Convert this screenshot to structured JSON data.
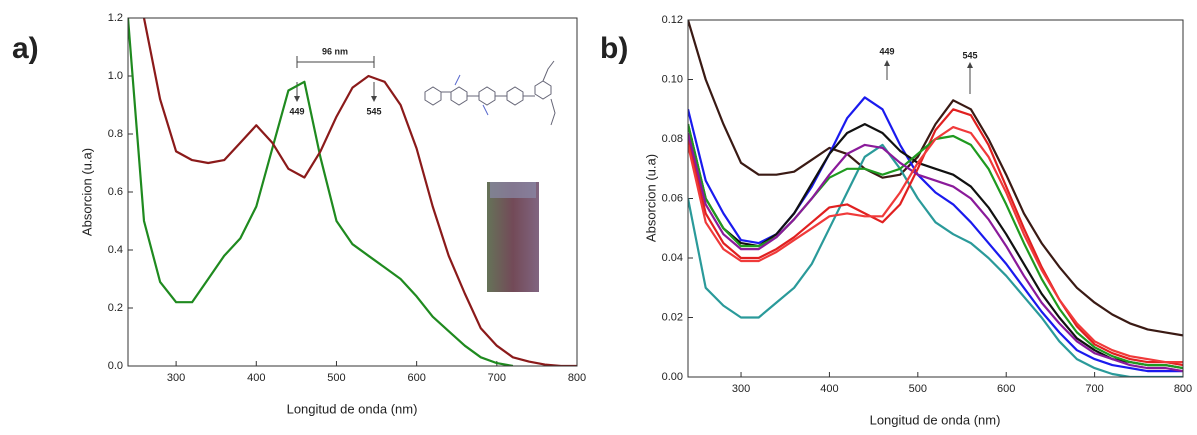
{
  "chart_data": [
    {
      "type": "line",
      "label": "a)",
      "xlabel": "Longitud de onda (nm)",
      "ylabel": "Absorcion (u.a)",
      "annotations": [
        "96 nm",
        "449",
        "545"
      ],
      "x": [
        240,
        260,
        280,
        300,
        320,
        340,
        360,
        380,
        400,
        420,
        440,
        460,
        480,
        500,
        520,
        540,
        560,
        580,
        600,
        620,
        640,
        660,
        680,
        700,
        720,
        740,
        760,
        780,
        800
      ],
      "xlim": [
        240,
        800
      ],
      "xticks": [
        300,
        400,
        500,
        600,
        700,
        800
      ],
      "ylim": [
        0,
        1.2
      ],
      "yticks": [
        {
          "value": 0,
          "label": "0.0"
        },
        0.2,
        0.4,
        0.6,
        0.8,
        {
          "value": 1,
          "label": "1.0"
        },
        1.2
      ],
      "series": [
        {
          "color": "#1f8a1f",
          "values": [
            1.2,
            0.5,
            0.29,
            0.22,
            0.22,
            0.3,
            0.38,
            0.44,
            0.55,
            0.75,
            0.95,
            0.98,
            0.72,
            0.5,
            0.42,
            0.38,
            0.34,
            0.3,
            0.24,
            0.17,
            0.12,
            0.07,
            0.03,
            0.01,
            0,
            null,
            null,
            null,
            null
          ]
        },
        {
          "color": "#8b1a1a",
          "values": [
            null,
            1.2,
            0.92,
            0.74,
            0.71,
            0.7,
            0.71,
            0.77,
            0.83,
            0.77,
            0.68,
            0.65,
            0.74,
            0.86,
            0.96,
            1,
            0.98,
            0.9,
            0.75,
            0.55,
            0.38,
            0.25,
            0.13,
            0.07,
            0.03,
            0.015,
            0.005,
            0,
            0
          ]
        }
      ]
    },
    {
      "type": "line",
      "label": "b)",
      "xlabel": "Longitud de onda (nm)",
      "ylabel": "Absorcion (u.a)",
      "annotations": [
        "449",
        "545"
      ],
      "x": [
        240,
        260,
        280,
        300,
        320,
        340,
        360,
        380,
        400,
        420,
        440,
        460,
        480,
        500,
        520,
        540,
        560,
        580,
        600,
        620,
        640,
        660,
        680,
        700,
        720,
        740,
        760,
        780,
        800
      ],
      "xlim": [
        240,
        800
      ],
      "xticks": [
        300,
        400,
        500,
        600,
        700,
        800
      ],
      "ylim": [
        0,
        0.12
      ],
      "yticks": [
        {
          "value": 0,
          "label": "0.00"
        },
        {
          "value": 0.02,
          "label": "0.02"
        },
        {
          "value": 0.04,
          "label": "0.04"
        },
        {
          "value": 0.06,
          "label": "0.06"
        },
        {
          "value": 0.08,
          "label": "0.08"
        },
        {
          "value": 0.1,
          "label": "0.10"
        },
        {
          "value": 0.12,
          "label": "0.12"
        }
      ],
      "series": [
        {
          "color": "#3a1a14",
          "values": [
            0.12,
            0.1,
            0.085,
            0.072,
            0.068,
            0.068,
            0.069,
            0.073,
            0.077,
            0.075,
            0.07,
            0.067,
            0.068,
            0.074,
            0.085,
            0.093,
            0.09,
            0.08,
            0.068,
            0.055,
            0.045,
            0.037,
            0.03,
            0.025,
            0.021,
            0.018,
            0.016,
            0.015,
            0.014
          ]
        },
        {
          "color": "#2a9a9a",
          "values": [
            0.06,
            0.03,
            0.024,
            0.02,
            0.02,
            0.025,
            0.03,
            0.038,
            0.05,
            0.062,
            0.074,
            0.078,
            0.07,
            0.06,
            0.052,
            0.048,
            0.045,
            0.04,
            0.034,
            0.027,
            0.02,
            0.012,
            0.006,
            0.003,
            0.001,
            0,
            0,
            0,
            0
          ]
        },
        {
          "color": "#1a1aee",
          "values": [
            0.09,
            0.066,
            0.055,
            0.046,
            0.045,
            0.048,
            0.055,
            0.064,
            0.075,
            0.087,
            0.094,
            0.09,
            0.078,
            0.068,
            0.062,
            0.058,
            0.052,
            0.045,
            0.038,
            0.03,
            0.022,
            0.015,
            0.009,
            0.006,
            0.004,
            0.003,
            0.002,
            0.002,
            0.002
          ]
        },
        {
          "color": "#111111",
          "values": [
            0.085,
            0.06,
            0.05,
            0.045,
            0.044,
            0.048,
            0.055,
            0.065,
            0.075,
            0.082,
            0.085,
            0.082,
            0.076,
            0.072,
            0.07,
            0.068,
            0.064,
            0.057,
            0.048,
            0.038,
            0.028,
            0.02,
            0.013,
            0.009,
            0.006,
            0.005,
            0.004,
            0.004,
            0.003
          ]
        },
        {
          "color": "#e02020",
          "values": [
            0.08,
            0.055,
            0.045,
            0.04,
            0.04,
            0.043,
            0.047,
            0.052,
            0.057,
            0.058,
            0.055,
            0.052,
            0.058,
            0.07,
            0.083,
            0.09,
            0.088,
            0.078,
            0.064,
            0.05,
            0.037,
            0.026,
            0.017,
            0.011,
            0.008,
            0.006,
            0.005,
            0.005,
            0.004
          ]
        },
        {
          "color": "#1f9a1f",
          "values": [
            0.085,
            0.06,
            0.05,
            0.044,
            0.044,
            0.047,
            0.053,
            0.06,
            0.067,
            0.07,
            0.07,
            0.068,
            0.07,
            0.075,
            0.08,
            0.081,
            0.078,
            0.07,
            0.058,
            0.045,
            0.033,
            0.023,
            0.015,
            0.01,
            0.007,
            0.005,
            0.004,
            0.004,
            0.003
          ]
        },
        {
          "color": "#8a1a9a",
          "values": [
            0.082,
            0.058,
            0.048,
            0.043,
            0.043,
            0.047,
            0.053,
            0.06,
            0.068,
            0.075,
            0.078,
            0.077,
            0.072,
            0.068,
            0.066,
            0.064,
            0.06,
            0.053,
            0.044,
            0.034,
            0.025,
            0.018,
            0.012,
            0.008,
            0.006,
            0.004,
            0.003,
            0.003,
            0.002
          ]
        },
        {
          "color": "#f03a3a",
          "values": [
            0.078,
            0.052,
            0.043,
            0.039,
            0.039,
            0.042,
            0.046,
            0.05,
            0.054,
            0.055,
            0.054,
            0.054,
            0.062,
            0.072,
            0.08,
            0.084,
            0.082,
            0.074,
            0.062,
            0.048,
            0.036,
            0.026,
            0.018,
            0.012,
            0.009,
            0.007,
            0.006,
            0.005,
            0.005
          ]
        }
      ]
    }
  ]
}
